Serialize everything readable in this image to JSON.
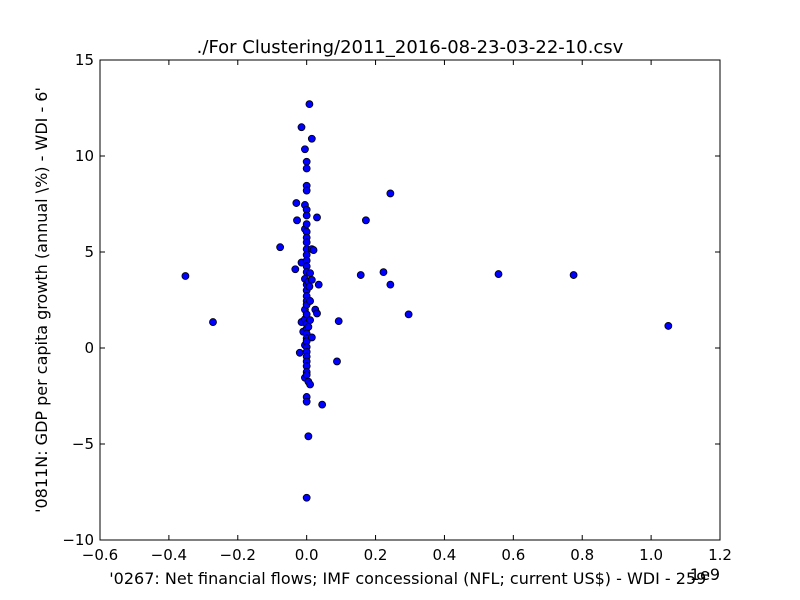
{
  "chart_data": {
    "type": "scatter",
    "title": "./For Clustering/2011_2016-08-23-03-22-10.csv",
    "xlabel": "'0267: Net financial flows; IMF concessional  (NFL; current US$) - WDI - 259'",
    "ylabel": "'0811N: GDP per capita growth  (annual \\%) - WDI - 6'",
    "x_offset_label": "1e9",
    "xlim": [
      -0.6,
      1.2
    ],
    "ylim": [
      -10,
      15
    ],
    "x_ticks": [
      -0.6,
      -0.4,
      -0.2,
      0.0,
      0.2,
      0.4,
      0.6,
      0.8,
      1.0,
      1.2
    ],
    "x_tick_labels": [
      "−0.6",
      "−0.4",
      "−0.2",
      "0.0",
      "0.2",
      "0.4",
      "0.6",
      "0.8",
      "1.0",
      "1.2"
    ],
    "y_ticks": [
      -10,
      -5,
      0,
      5,
      10,
      15
    ],
    "y_tick_labels": [
      "−10",
      "−5",
      "0",
      "5",
      "10",
      "15"
    ],
    "grid": false,
    "marker_color": "#0000ff",
    "marker_edge": "#000000",
    "points": [
      {
        "x": -0.352,
        "y": 3.75
      },
      {
        "x": -0.272,
        "y": 1.35
      },
      {
        "x": -0.077,
        "y": 5.25
      },
      {
        "x": -0.03,
        "y": 7.55
      },
      {
        "x": -0.028,
        "y": 6.65
      },
      {
        "x": -0.033,
        "y": 4.1
      },
      {
        "x": -0.02,
        "y": -0.25
      },
      {
        "x": -0.015,
        "y": 11.5
      },
      {
        "x": -0.015,
        "y": 4.45
      },
      {
        "x": -0.015,
        "y": 1.35
      },
      {
        "x": -0.01,
        "y": 0.85
      },
      {
        "x": -0.005,
        "y": 10.35
      },
      {
        "x": -0.005,
        "y": 7.45
      },
      {
        "x": -0.005,
        "y": 6.2
      },
      {
        "x": -0.005,
        "y": 3.6
      },
      {
        "x": -0.005,
        "y": 2.0
      },
      {
        "x": -0.005,
        "y": 1.5
      },
      {
        "x": -0.005,
        "y": 0.15
      },
      {
        "x": -0.005,
        "y": -1.55
      },
      {
        "x": 0.0,
        "y": 9.7
      },
      {
        "x": 0.0,
        "y": 9.35
      },
      {
        "x": 0.0,
        "y": 8.45
      },
      {
        "x": 0.0,
        "y": 8.2
      },
      {
        "x": 0.0,
        "y": 7.2
      },
      {
        "x": 0.0,
        "y": 6.9
      },
      {
        "x": 0.0,
        "y": 6.45
      },
      {
        "x": 0.0,
        "y": 6.05
      },
      {
        "x": 0.0,
        "y": 5.75
      },
      {
        "x": 0.0,
        "y": 5.5
      },
      {
        "x": 0.0,
        "y": 5.15
      },
      {
        "x": 0.0,
        "y": 4.85
      },
      {
        "x": 0.0,
        "y": 4.55
      },
      {
        "x": 0.0,
        "y": 4.25
      },
      {
        "x": 0.0,
        "y": 3.95
      },
      {
        "x": 0.0,
        "y": 3.3
      },
      {
        "x": 0.0,
        "y": 3.0
      },
      {
        "x": 0.0,
        "y": 2.7
      },
      {
        "x": 0.0,
        "y": 2.45
      },
      {
        "x": 0.0,
        "y": 2.25
      },
      {
        "x": 0.0,
        "y": 1.75
      },
      {
        "x": 0.0,
        "y": 1.25
      },
      {
        "x": 0.0,
        "y": 1.0
      },
      {
        "x": 0.0,
        "y": 0.75
      },
      {
        "x": 0.0,
        "y": 0.5
      },
      {
        "x": 0.0,
        "y": 0.35
      },
      {
        "x": 0.0,
        "y": 0.05
      },
      {
        "x": 0.0,
        "y": -0.2
      },
      {
        "x": 0.0,
        "y": -0.45
      },
      {
        "x": 0.0,
        "y": -0.7
      },
      {
        "x": 0.0,
        "y": -0.95
      },
      {
        "x": 0.0,
        "y": -1.25
      },
      {
        "x": 0.0,
        "y": -1.4
      },
      {
        "x": 0.0,
        "y": -2.55
      },
      {
        "x": 0.0,
        "y": -2.8
      },
      {
        "x": 0.0,
        "y": -7.8
      },
      {
        "x": 0.005,
        "y": 3.45
      },
      {
        "x": 0.005,
        "y": 1.1
      },
      {
        "x": 0.005,
        "y": -1.75
      },
      {
        "x": 0.005,
        "y": -4.6
      },
      {
        "x": 0.008,
        "y": 12.7
      },
      {
        "x": 0.008,
        "y": 3.2
      },
      {
        "x": 0.01,
        "y": 3.9
      },
      {
        "x": 0.01,
        "y": 2.45
      },
      {
        "x": 0.01,
        "y": 1.45
      },
      {
        "x": 0.01,
        "y": -1.9
      },
      {
        "x": 0.015,
        "y": 10.9
      },
      {
        "x": 0.015,
        "y": 5.15
      },
      {
        "x": 0.015,
        "y": 3.55
      },
      {
        "x": 0.015,
        "y": 0.55
      },
      {
        "x": 0.02,
        "y": 5.1
      },
      {
        "x": 0.025,
        "y": 2.0
      },
      {
        "x": 0.03,
        "y": 6.8
      },
      {
        "x": 0.03,
        "y": 1.8
      },
      {
        "x": 0.035,
        "y": 3.3
      },
      {
        "x": 0.045,
        "y": -2.95
      },
      {
        "x": 0.088,
        "y": -0.7
      },
      {
        "x": 0.093,
        "y": 1.4
      },
      {
        "x": 0.157,
        "y": 3.8
      },
      {
        "x": 0.172,
        "y": 6.65
      },
      {
        "x": 0.223,
        "y": 3.95
      },
      {
        "x": 0.243,
        "y": 8.05
      },
      {
        "x": 0.243,
        "y": 3.3
      },
      {
        "x": 0.296,
        "y": 1.75
      },
      {
        "x": 0.557,
        "y": 3.85
      },
      {
        "x": 0.775,
        "y": 3.8
      },
      {
        "x": 1.05,
        "y": 1.15
      }
    ]
  }
}
